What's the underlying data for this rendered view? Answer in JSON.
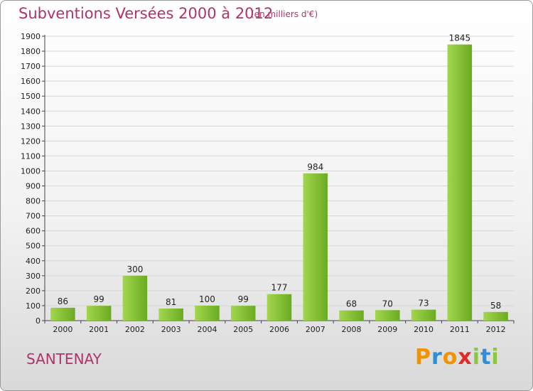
{
  "chart_data": {
    "type": "bar",
    "title": "Subventions Versées 2000 à 2012",
    "subtitle": "(en milliers d'€)",
    "categories": [
      "2000",
      "2001",
      "2002",
      "2003",
      "2004",
      "2005",
      "2006",
      "2007",
      "2008",
      "2009",
      "2010",
      "2011",
      "2012"
    ],
    "values": [
      86,
      99,
      300,
      81,
      100,
      99,
      177,
      984,
      68,
      70,
      73,
      1845,
      58
    ],
    "ylim": [
      0,
      1900
    ],
    "yticks": [
      0,
      100,
      200,
      300,
      400,
      500,
      600,
      700,
      800,
      900,
      1000,
      1100,
      1200,
      1300,
      1400,
      1500,
      1600,
      1700,
      1800,
      1900
    ],
    "grid": true,
    "legend": "none",
    "bar_color": "#7ab82e",
    "bar_color_light": "#a2d64e"
  },
  "commune": "SANTENAY",
  "logo": {
    "letters": [
      "P",
      "r",
      "o",
      "x",
      "i",
      "t",
      "i"
    ],
    "colors": [
      "#f29400",
      "#2f8fd6",
      "#f29400",
      "#e0292a",
      "#8cc63f",
      "#2f8fd6",
      "#8cc63f"
    ]
  }
}
